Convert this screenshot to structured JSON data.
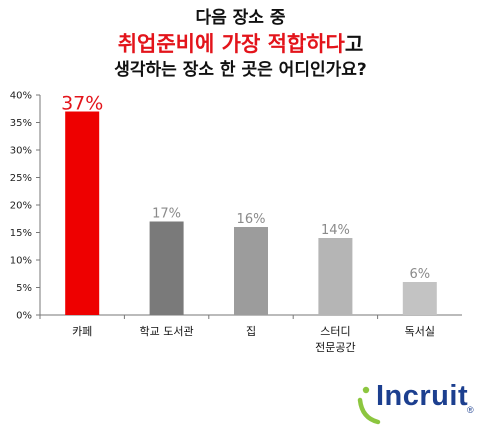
{
  "title": {
    "line1": "다음 장소 중",
    "line2_highlight": "취업준비에 가장 적합하다",
    "line2_rest": "고",
    "line3": "생각하는 장소 한 곳은 어디인가요?"
  },
  "chart_data": {
    "type": "bar",
    "categories": [
      "카페",
      "학교 도서관",
      "집",
      "스터디\n전문공간",
      "독서실"
    ],
    "values": [
      37,
      17,
      16,
      14,
      6
    ],
    "data_labels": [
      "37%",
      "17%",
      "16%",
      "14%",
      "6%"
    ],
    "bar_colors": [
      "#ee0000",
      "#7a7a7a",
      "#9c9c9c",
      "#b5b5b5",
      "#c3c3c3"
    ],
    "label_colors": [
      "#e3141b",
      "#8a8a8a",
      "#8a8a8a",
      "#8a8a8a",
      "#8a8a8a"
    ],
    "y_ticks": [
      "0%",
      "5%",
      "10%",
      "15%",
      "20%",
      "25%",
      "30%",
      "35%",
      "40%"
    ],
    "ylim": [
      0,
      40
    ],
    "grid": false,
    "legend": false
  },
  "logo": {
    "text": "Incruit",
    "mark": "®",
    "color": "#1c3f8f",
    "accent": "#8cc63f"
  }
}
